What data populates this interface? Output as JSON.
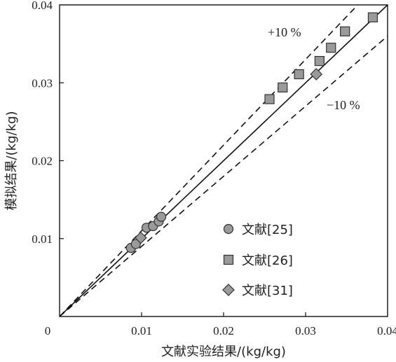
{
  "chart_data": {
    "type": "scatter",
    "title": "",
    "xlabel": "文献实验结果/(kg/kg)",
    "ylabel": "模拟结果/(kg/kg)",
    "xlim": [
      0,
      0.04
    ],
    "ylim": [
      0,
      0.04
    ],
    "x_ticks": [
      "0",
      "0.01",
      "0.02",
      "0.03",
      "0.04"
    ],
    "y_ticks": [
      "0.01",
      "0.02",
      "0.03",
      "0.04"
    ],
    "grid": false,
    "legend_position": "bottom-right",
    "reference_lines": [
      {
        "kind": "parity",
        "style": "solid",
        "slope": 1.0,
        "label": ""
      },
      {
        "kind": "upper",
        "style": "dashed",
        "slope": 1.1,
        "label": "+10 %"
      },
      {
        "kind": "lower",
        "style": "dashed",
        "slope": 0.9,
        "label": "−10 %"
      }
    ],
    "series": [
      {
        "name": "文献[25]",
        "marker": "circle",
        "points": [
          {
            "x": 0.0087,
            "y": 0.0088
          },
          {
            "x": 0.0093,
            "y": 0.0093
          },
          {
            "x": 0.0106,
            "y": 0.0114
          },
          {
            "x": 0.0114,
            "y": 0.0116
          },
          {
            "x": 0.0121,
            "y": 0.0122
          },
          {
            "x": 0.0124,
            "y": 0.0128
          }
        ]
      },
      {
        "name": "文献[26]",
        "marker": "square",
        "points": [
          {
            "x": 0.0256,
            "y": 0.0279
          },
          {
            "x": 0.0272,
            "y": 0.0294
          },
          {
            "x": 0.0292,
            "y": 0.0311
          },
          {
            "x": 0.0317,
            "y": 0.0328
          },
          {
            "x": 0.0331,
            "y": 0.0345
          },
          {
            "x": 0.0348,
            "y": 0.0366
          },
          {
            "x": 0.0382,
            "y": 0.0384
          }
        ]
      },
      {
        "name": "文献[31]",
        "marker": "diamond",
        "points": [
          {
            "x": 0.0099,
            "y": 0.0101
          },
          {
            "x": 0.0313,
            "y": 0.0311
          }
        ]
      }
    ],
    "colors": {
      "marker_fill": "#9a9a9a",
      "marker_stroke": "#333333",
      "line": "#111111"
    }
  }
}
